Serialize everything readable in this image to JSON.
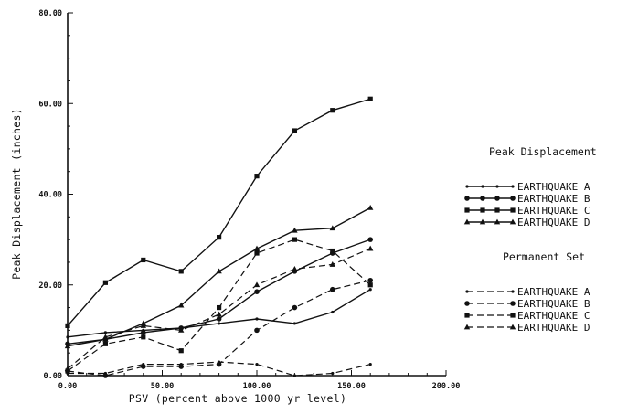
{
  "chart_data": {
    "type": "line",
    "xlabel": "PSV (percent above 1000 yr level)",
    "ylabel": "Peak Displacement (inches)",
    "xlim": [
      0,
      200
    ],
    "ylim": [
      0,
      80
    ],
    "xticks": [
      "0.00",
      "50.00",
      "100.00",
      "150.00",
      "200.00"
    ],
    "yticks": [
      "0.00",
      "20.00",
      "40.00",
      "60.00",
      "80.00"
    ],
    "grid": false,
    "legend_position": "right",
    "legend_groups": [
      {
        "title": "Peak Displacement",
        "entries": [
          "EARTHQUAKE A",
          "EARTHQUAKE B",
          "EARTHQUAKE C",
          "EARTHQUAKE D"
        ]
      },
      {
        "title": "Permanent Set",
        "entries": [
          "EARTHQUAKE A",
          "EARTHQUAKE B",
          "EARTHQUAKE C",
          "EARTHQUAKE D"
        ]
      }
    ],
    "series": [
      {
        "name": "Peak Displacement EARTHQUAKE A",
        "style": "solid",
        "marker": "dot",
        "x": [
          0,
          20,
          40,
          60,
          80,
          100,
          120,
          140,
          160
        ],
        "y": [
          8.5,
          9.5,
          10.0,
          10.5,
          11.5,
          12.5,
          11.5,
          14.0,
          19.0
        ]
      },
      {
        "name": "Peak Displacement EARTHQUAKE B",
        "style": "solid",
        "marker": "circle",
        "x": [
          0,
          20,
          40,
          60,
          80,
          100,
          120,
          140,
          160
        ],
        "y": [
          7.0,
          8.0,
          9.5,
          10.5,
          12.5,
          18.5,
          23.0,
          27.0,
          30.0
        ]
      },
      {
        "name": "Peak Displacement EARTHQUAKE C",
        "style": "solid",
        "marker": "square",
        "x": [
          0,
          20,
          40,
          60,
          80,
          100,
          120,
          140,
          160
        ],
        "y": [
          11.0,
          20.5,
          25.5,
          23.0,
          30.5,
          44.0,
          54.0,
          58.5,
          61.0
        ]
      },
      {
        "name": "Peak Displacement EARTHQUAKE D",
        "style": "solid",
        "marker": "triangle",
        "x": [
          0,
          20,
          40,
          60,
          80,
          100,
          120,
          140,
          160
        ],
        "y": [
          6.5,
          8.0,
          11.5,
          15.5,
          23.0,
          28.0,
          32.0,
          32.5,
          37.0
        ]
      },
      {
        "name": "Permanent Set EARTHQUAKE A",
        "style": "dashed",
        "marker": "dot",
        "x": [
          0,
          20,
          40,
          60,
          80,
          100,
          120,
          140,
          160
        ],
        "y": [
          0.5,
          0.5,
          2.5,
          2.5,
          3.0,
          2.5,
          0.0,
          0.5,
          2.5
        ]
      },
      {
        "name": "Permanent Set EARTHQUAKE B",
        "style": "dashed",
        "marker": "circle",
        "x": [
          0,
          20,
          40,
          60,
          80,
          100,
          120,
          140,
          160
        ],
        "y": [
          1.0,
          0.0,
          2.0,
          2.0,
          2.5,
          10.0,
          15.0,
          19.0,
          21.0
        ]
      },
      {
        "name": "Permanent Set EARTHQUAKE C",
        "style": "dashed",
        "marker": "square",
        "x": [
          0,
          20,
          40,
          60,
          80,
          100,
          120,
          140,
          160
        ],
        "y": [
          1.0,
          7.0,
          8.5,
          5.5,
          15.0,
          27.0,
          30.0,
          27.5,
          20.0
        ]
      },
      {
        "name": "Permanent Set EARTHQUAKE D",
        "style": "dashed",
        "marker": "triangle",
        "x": [
          0,
          20,
          40,
          60,
          80,
          100,
          120,
          140,
          160
        ],
        "y": [
          1.5,
          8.5,
          11.0,
          10.0,
          13.5,
          20.0,
          23.5,
          24.5,
          28.0
        ]
      }
    ]
  }
}
